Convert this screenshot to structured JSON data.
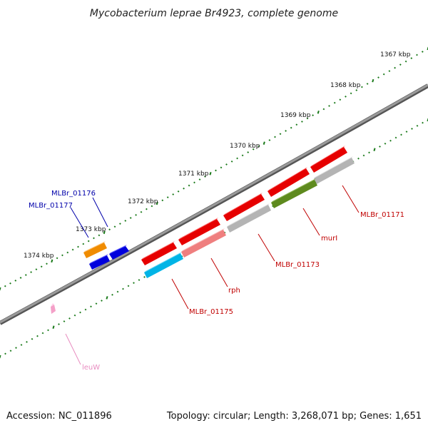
{
  "title": "Mycobacterium leprae Br4923, complete genome",
  "footer": {
    "accession": "Accession: NC_011896",
    "topology": "Topology: circular; Length: 3,268,071 bp; Genes: 1,651"
  },
  "scale_labels": [
    "1367 kbp",
    "1368 kbp",
    "1369 kbp",
    "1370 kbp",
    "1371 kbp",
    "1372 kbp",
    "1373 kbp",
    "1374 kbp"
  ],
  "colors": {
    "backbone": "#808080",
    "tick": "#1a7a1a",
    "red": "#e60000",
    "pink": "#ef7f7f",
    "grey": "#b4b4b4",
    "olive": "#5e8a1e",
    "cyan": "#00b4e6",
    "orange": "#f08c00",
    "blue": "#0000dd",
    "lightpink": "#f4a0c8",
    "label_red": "#c00000",
    "label_blue": "#0000aa",
    "label_pink": "#e88cc0"
  },
  "genes": [
    {
      "name": "MLBr_01171"
    },
    {
      "name": "murI"
    },
    {
      "name": "MLBr_01173"
    },
    {
      "name": "rph"
    },
    {
      "name": "MLBr_01175"
    },
    {
      "name": "MLBr_01176"
    },
    {
      "name": "MLBr_01177"
    },
    {
      "name": "leuW"
    }
  ]
}
